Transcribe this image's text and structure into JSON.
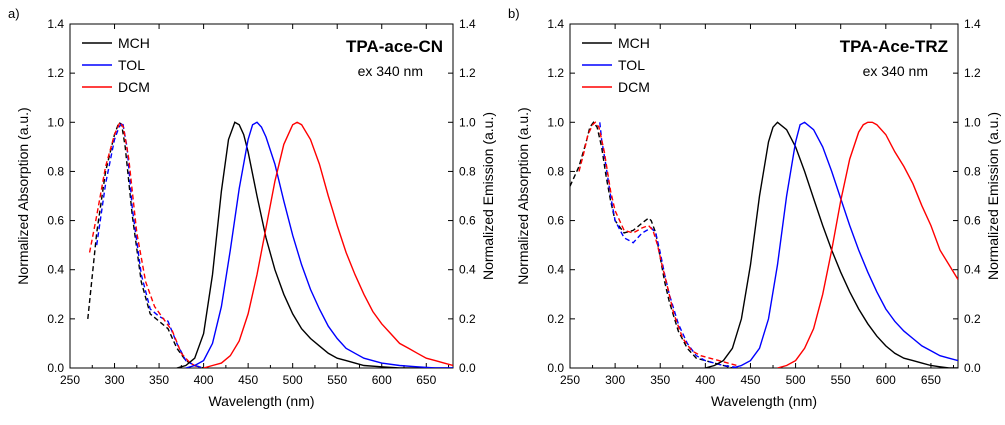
{
  "chart_data": [
    {
      "panel": "a)",
      "type": "line",
      "title": "TPA-ace-CN",
      "subtitle": "ex 340 nm",
      "xlabel": "Wavelength (nm)",
      "ylabel_left": "Normalized Absorption (a.u.)",
      "ylabel_right": "Normalized Emission (a.u.)",
      "xlim": [
        250,
        680
      ],
      "ylim": [
        0,
        1.4
      ],
      "xticks": [
        250,
        300,
        350,
        400,
        450,
        500,
        550,
        600,
        650
      ],
      "yticks": [
        0.0,
        0.2,
        0.4,
        0.6,
        0.8,
        1.0,
        1.2,
        1.4
      ],
      "grid": false,
      "legend_position": "top-left",
      "legend": [
        "MCH",
        "TOL",
        "DCM"
      ],
      "series": [
        {
          "name": "MCH",
          "kind": "absorption",
          "color": "#000000",
          "dashed": true,
          "x": [
            270,
            280,
            290,
            300,
            305,
            308,
            312,
            320,
            330,
            340,
            350,
            360,
            370,
            380,
            390,
            400
          ],
          "y": [
            0.2,
            0.55,
            0.8,
            0.95,
            1.0,
            0.99,
            0.9,
            0.62,
            0.35,
            0.22,
            0.19,
            0.16,
            0.08,
            0.03,
            0.01,
            0.0
          ]
        },
        {
          "name": "TOL",
          "kind": "absorption",
          "color": "#0000ff",
          "dashed": true,
          "x": [
            280,
            290,
            300,
            305,
            309,
            314,
            320,
            330,
            340,
            350,
            360,
            370,
            380,
            390,
            400
          ],
          "y": [
            0.5,
            0.75,
            0.93,
            0.98,
            1.0,
            0.9,
            0.65,
            0.38,
            0.24,
            0.21,
            0.19,
            0.1,
            0.03,
            0.01,
            0.0
          ]
        },
        {
          "name": "DCM",
          "kind": "absorption",
          "color": "#ff0000",
          "dashed": true,
          "x": [
            272,
            280,
            290,
            300,
            306,
            310,
            316,
            325,
            335,
            345,
            355,
            365,
            375,
            385,
            395
          ],
          "y": [
            0.47,
            0.62,
            0.82,
            0.95,
            1.0,
            0.98,
            0.85,
            0.55,
            0.35,
            0.25,
            0.2,
            0.15,
            0.06,
            0.02,
            0.0
          ]
        },
        {
          "name": "MCH",
          "kind": "emission",
          "color": "#000000",
          "dashed": false,
          "x": [
            370,
            380,
            390,
            400,
            410,
            420,
            428,
            435,
            440,
            445,
            450,
            460,
            470,
            480,
            490,
            500,
            510,
            520,
            530,
            540,
            550,
            560,
            570,
            580,
            600,
            620,
            640,
            660,
            680
          ],
          "y": [
            0.0,
            0.01,
            0.04,
            0.14,
            0.38,
            0.72,
            0.93,
            1.0,
            0.99,
            0.95,
            0.88,
            0.7,
            0.53,
            0.4,
            0.3,
            0.22,
            0.16,
            0.12,
            0.09,
            0.06,
            0.04,
            0.03,
            0.02,
            0.01,
            0.005,
            0.0,
            0.0,
            0.0,
            0.0
          ]
        },
        {
          "name": "TOL",
          "kind": "emission",
          "color": "#0000ff",
          "dashed": false,
          "x": [
            380,
            390,
            400,
            410,
            420,
            430,
            440,
            450,
            455,
            460,
            465,
            470,
            480,
            490,
            500,
            510,
            520,
            530,
            540,
            550,
            560,
            570,
            580,
            600,
            620,
            640,
            660,
            680
          ],
          "y": [
            0.0,
            0.01,
            0.03,
            0.1,
            0.25,
            0.48,
            0.73,
            0.93,
            0.99,
            1.0,
            0.98,
            0.94,
            0.83,
            0.68,
            0.54,
            0.42,
            0.32,
            0.24,
            0.17,
            0.12,
            0.08,
            0.06,
            0.04,
            0.02,
            0.01,
            0.005,
            0.0,
            0.0
          ]
        },
        {
          "name": "DCM",
          "kind": "emission",
          "color": "#ff0000",
          "dashed": false,
          "x": [
            400,
            410,
            420,
            430,
            440,
            450,
            460,
            470,
            480,
            490,
            500,
            505,
            510,
            520,
            530,
            540,
            545,
            550,
            560,
            570,
            580,
            590,
            600,
            610,
            620,
            630,
            640,
            650,
            660,
            670,
            680
          ],
          "y": [
            0.0,
            0.01,
            0.02,
            0.05,
            0.11,
            0.22,
            0.38,
            0.57,
            0.76,
            0.91,
            0.99,
            1.0,
            0.99,
            0.93,
            0.83,
            0.7,
            0.64,
            0.58,
            0.47,
            0.38,
            0.3,
            0.23,
            0.18,
            0.14,
            0.1,
            0.08,
            0.06,
            0.04,
            0.03,
            0.02,
            0.01
          ]
        }
      ]
    },
    {
      "panel": "b)",
      "type": "line",
      "title": "TPA-Ace-TRZ",
      "subtitle": "ex 340 nm",
      "xlabel": "Wavelength (nm)",
      "ylabel_left": "Normalized Absorption (a.u.)",
      "ylabel_right": "Normalized Emission (a.u.)",
      "xlim": [
        250,
        680
      ],
      "ylim": [
        0,
        1.4
      ],
      "xticks": [
        250,
        300,
        350,
        400,
        450,
        500,
        550,
        600,
        650
      ],
      "yticks": [
        0.0,
        0.2,
        0.4,
        0.6,
        0.8,
        1.0,
        1.2,
        1.4
      ],
      "grid": false,
      "legend_position": "top-left",
      "legend": [
        "MCH",
        "TOL",
        "DCM"
      ],
      "series": [
        {
          "name": "MCH",
          "kind": "absorption",
          "color": "#000000",
          "dashed": true,
          "x": [
            250,
            260,
            268,
            272,
            276,
            280,
            285,
            290,
            295,
            300,
            310,
            320,
            330,
            337,
            340,
            345,
            350,
            355,
            360,
            370,
            380,
            390,
            400,
            410,
            420,
            430
          ],
          "y": [
            0.74,
            0.82,
            0.92,
            0.98,
            1.0,
            0.98,
            0.9,
            0.78,
            0.68,
            0.6,
            0.55,
            0.56,
            0.59,
            0.61,
            0.6,
            0.55,
            0.45,
            0.35,
            0.27,
            0.15,
            0.08,
            0.04,
            0.03,
            0.02,
            0.01,
            0.0
          ]
        },
        {
          "name": "TOL",
          "kind": "absorption",
          "color": "#0000ff",
          "dashed": true,
          "x": [
            283,
            285,
            290,
            295,
            300,
            310,
            320,
            330,
            340,
            345,
            350,
            355,
            360,
            370,
            380,
            390,
            400,
            410,
            420,
            430,
            440
          ],
          "y": [
            1.0,
            0.93,
            0.82,
            0.7,
            0.6,
            0.53,
            0.51,
            0.55,
            0.57,
            0.55,
            0.47,
            0.38,
            0.3,
            0.18,
            0.1,
            0.05,
            0.03,
            0.02,
            0.01,
            0.005,
            0.0
          ]
        },
        {
          "name": "DCM",
          "kind": "absorption",
          "color": "#ff0000",
          "dashed": true,
          "x": [
            260,
            265,
            270,
            275,
            278,
            282,
            288,
            295,
            300,
            310,
            320,
            330,
            337,
            342,
            347,
            352,
            358,
            365,
            375,
            385,
            395,
            405,
            415,
            425,
            435
          ],
          "y": [
            0.8,
            0.87,
            0.95,
            0.99,
            1.0,
            0.98,
            0.88,
            0.72,
            0.64,
            0.56,
            0.55,
            0.57,
            0.58,
            0.56,
            0.5,
            0.42,
            0.33,
            0.22,
            0.12,
            0.07,
            0.05,
            0.04,
            0.03,
            0.02,
            0.01
          ]
        },
        {
          "name": "MCH",
          "kind": "emission",
          "color": "#000000",
          "dashed": false,
          "x": [
            400,
            410,
            420,
            430,
            440,
            450,
            460,
            470,
            475,
            480,
            490,
            500,
            510,
            520,
            530,
            540,
            550,
            560,
            570,
            580,
            590,
            600,
            610,
            620,
            630,
            640,
            650,
            660,
            670,
            680
          ],
          "y": [
            0.0,
            0.01,
            0.03,
            0.08,
            0.2,
            0.42,
            0.7,
            0.92,
            0.98,
            1.0,
            0.97,
            0.9,
            0.8,
            0.69,
            0.58,
            0.48,
            0.39,
            0.31,
            0.24,
            0.18,
            0.13,
            0.09,
            0.06,
            0.04,
            0.03,
            0.02,
            0.01,
            0.005,
            0.0,
            0.0
          ]
        },
        {
          "name": "TOL",
          "kind": "emission",
          "color": "#0000ff",
          "dashed": false,
          "x": [
            430,
            440,
            450,
            460,
            470,
            480,
            490,
            500,
            505,
            510,
            520,
            530,
            540,
            550,
            560,
            570,
            580,
            590,
            600,
            610,
            620,
            630,
            640,
            650,
            660,
            670,
            680
          ],
          "y": [
            0.0,
            0.01,
            0.03,
            0.08,
            0.2,
            0.42,
            0.7,
            0.92,
            0.99,
            1.0,
            0.97,
            0.9,
            0.8,
            0.69,
            0.58,
            0.48,
            0.39,
            0.31,
            0.24,
            0.19,
            0.15,
            0.12,
            0.09,
            0.07,
            0.05,
            0.04,
            0.03
          ]
        },
        {
          "name": "DCM",
          "kind": "emission",
          "color": "#ff0000",
          "dashed": false,
          "x": [
            480,
            490,
            500,
            510,
            520,
            530,
            540,
            550,
            560,
            570,
            575,
            580,
            585,
            590,
            600,
            610,
            620,
            630,
            640,
            650,
            660,
            670,
            680
          ],
          "y": [
            0.0,
            0.01,
            0.03,
            0.08,
            0.16,
            0.3,
            0.48,
            0.68,
            0.85,
            0.96,
            0.99,
            1.0,
            1.0,
            0.99,
            0.95,
            0.88,
            0.82,
            0.75,
            0.66,
            0.58,
            0.48,
            0.42,
            0.36
          ]
        }
      ]
    }
  ]
}
